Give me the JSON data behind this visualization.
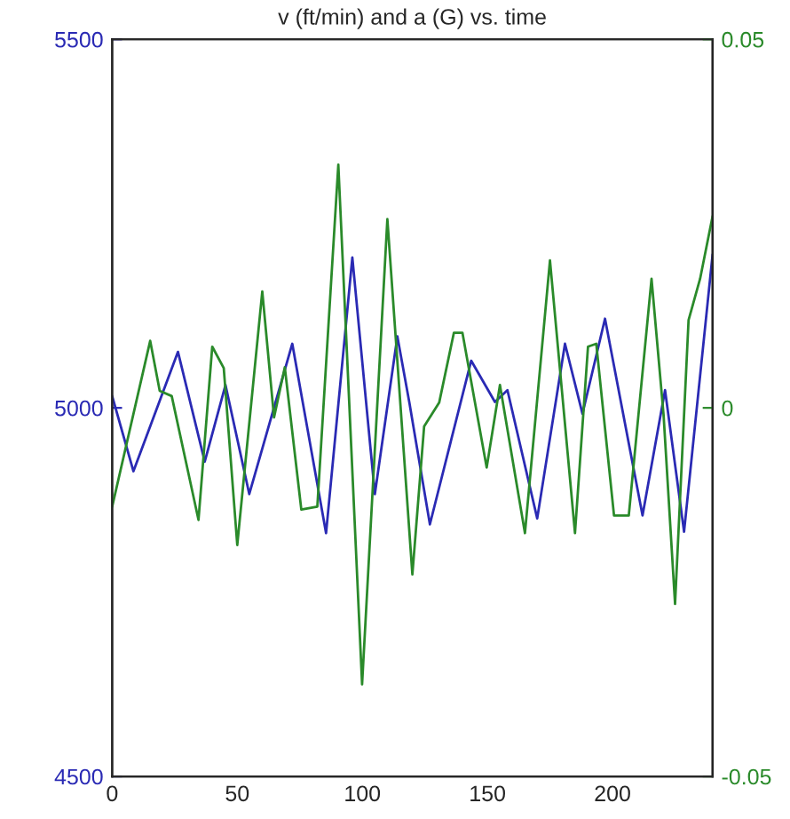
{
  "chart_data": {
    "type": "line",
    "title": "v (ft/min) and a (G) vs. time",
    "xlim": [
      0,
      240
    ],
    "xticks": [
      0,
      50,
      100,
      150,
      200
    ],
    "ylim": [
      4500,
      5500
    ],
    "yticks": [
      4500,
      5000,
      5500
    ],
    "y2lim": [
      -0.05,
      0.05
    ],
    "y2ticks": [
      -0.05,
      0,
      0.05
    ],
    "grid": false,
    "marker": "none",
    "line_style": "solid",
    "series": [
      {
        "color": "#2a2ab4",
        "x": [
          0,
          8.5,
          26.3,
          37,
          45.3,
          54.8,
          72,
          85.5,
          96,
          105,
          114,
          118.8,
          127,
          143.5,
          153,
          158,
          169.9,
          181,
          188,
          197,
          212,
          221,
          228.6,
          240
        ],
        "values": [
          5016,
          4914,
          5076,
          4927,
          5031,
          4883,
          5087,
          4830,
          5204,
          4883,
          5097,
          5007,
          4842,
          5064,
          5008,
          5024,
          4850,
          5087,
          4992,
          5121,
          4854,
          5024,
          4832,
          5208
        ]
      },
      {
        "color": "#2a8a2a",
        "axis": "y2",
        "x": [
          0,
          15.2,
          19,
          23.8,
          34.5,
          40,
          44.6,
          50,
          60,
          64.7,
          69,
          75.6,
          82,
          90.4,
          99.9,
          110,
          120,
          124.7,
          130.7,
          136.6,
          140,
          149.7,
          155,
          165,
          175,
          185,
          190.2,
          193.5,
          200.6,
          206.5,
          215.6,
          220.4,
          225,
          230.4,
          235,
          240
        ],
        "values": [
          -0.0134,
          0.0091,
          0.0023,
          0.0016,
          -0.0152,
          0.0083,
          0.0054,
          -0.0186,
          0.0158,
          -0.0013,
          0.0055,
          -0.0138,
          -0.0134,
          0.033,
          -0.0375,
          0.0256,
          -0.0226,
          -0.0025,
          0.0007,
          0.0102,
          0.0102,
          -0.0081,
          0.0031,
          -0.017,
          0.02,
          -0.017,
          0.0083,
          0.0087,
          -0.0146,
          -0.0146,
          0.0175,
          -0.0009,
          -0.0266,
          0.0119,
          0.0175,
          0.026
        ]
      }
    ]
  }
}
